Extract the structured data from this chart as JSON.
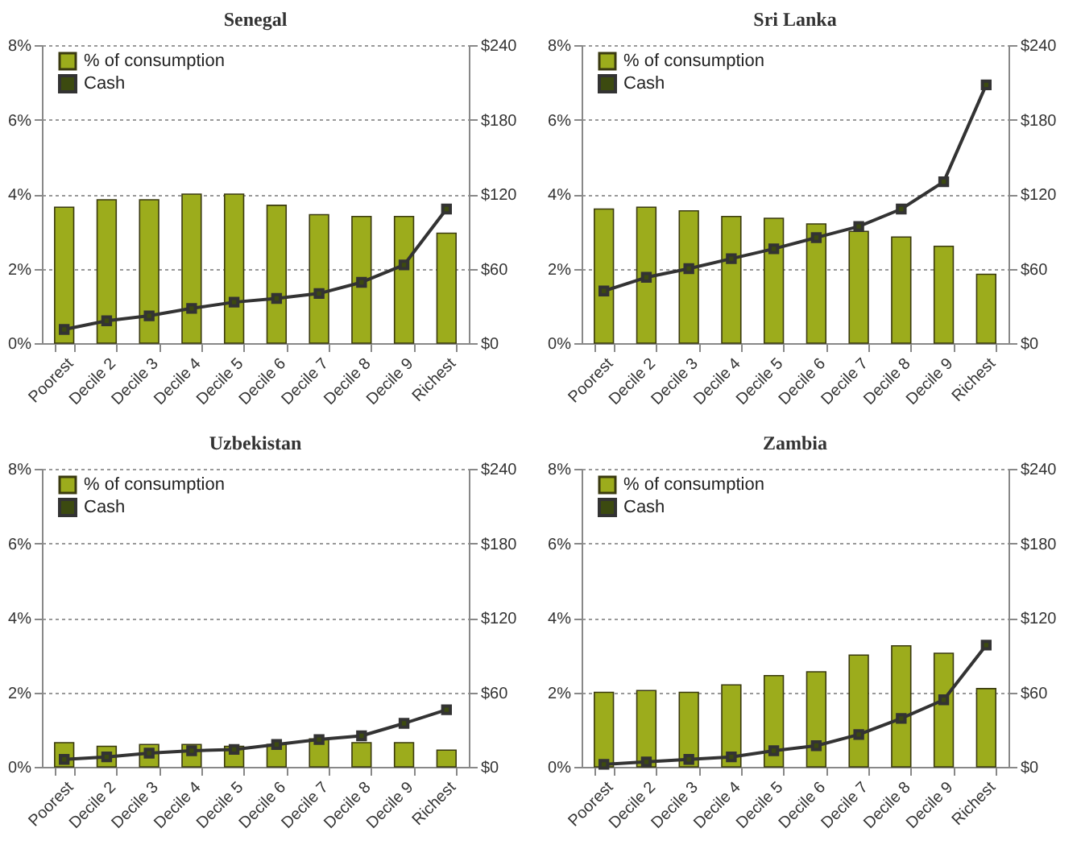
{
  "chart_data": [
    {
      "type": "bar",
      "title": "Senegal",
      "categories": [
        "Poorest",
        "Decile 2",
        "Decile 3",
        "Decile 4",
        "Decile 5",
        "Decile 6",
        "Decile 7",
        "Decile 8",
        "Decile 9",
        "Richest"
      ],
      "series": [
        {
          "name": "% of consumption",
          "color": "#9cac1c",
          "values": [
            3.65,
            3.85,
            3.85,
            4.0,
            4.0,
            3.7,
            3.45,
            3.4,
            3.4,
            2.95
          ]
        },
        {
          "name": "Cash",
          "type": "line",
          "axis": "y2",
          "color": "#333333",
          "values": [
            11,
            18,
            22,
            28,
            33,
            36,
            40,
            49,
            63,
            108
          ]
        }
      ],
      "ylim": [
        0,
        8
      ],
      "yticks": [
        {
          "value": 0,
          "label": "0%"
        },
        {
          "value": 2,
          "label": "2%"
        },
        {
          "value": 4,
          "label": "4%"
        },
        {
          "value": 6,
          "label": "6%"
        },
        {
          "value": 8,
          "label": "8%"
        }
      ],
      "y2lim": [
        0,
        240
      ],
      "y2ticks": [
        {
          "value": 0,
          "label": "$0"
        },
        {
          "value": 60,
          "label": "$60"
        },
        {
          "value": 120,
          "label": "$120"
        },
        {
          "value": 180,
          "label": "$180"
        },
        {
          "value": 240,
          "label": "$240"
        }
      ],
      "grid": "y",
      "legend": "top left",
      "marker": "square"
    },
    {
      "type": "bar",
      "title": "Sri Lanka",
      "categories": [
        "Poorest",
        "Decile 2",
        "Decile 3",
        "Decile 4",
        "Decile 5",
        "Decile 6",
        "Decile 7",
        "Decile 8",
        "Decile 9",
        "Richest"
      ],
      "series": [
        {
          "name": "% of consumption",
          "color": "#9cac1c",
          "values": [
            3.6,
            3.65,
            3.55,
            3.4,
            3.35,
            3.2,
            3.0,
            2.85,
            2.6,
            1.85
          ]
        },
        {
          "name": "Cash",
          "type": "line",
          "axis": "y2",
          "color": "#333333",
          "values": [
            42,
            53,
            60,
            68,
            76,
            85,
            94,
            108,
            130,
            208
          ]
        }
      ],
      "ylim": [
        0,
        8
      ],
      "yticks": [
        {
          "value": 0,
          "label": "0%"
        },
        {
          "value": 2,
          "label": "2%"
        },
        {
          "value": 4,
          "label": "4%"
        },
        {
          "value": 6,
          "label": "6%"
        },
        {
          "value": 8,
          "label": "8%"
        }
      ],
      "y2lim": [
        0,
        240
      ],
      "y2ticks": [
        {
          "value": 0,
          "label": "$0"
        },
        {
          "value": 60,
          "label": "$60"
        },
        {
          "value": 120,
          "label": "$120"
        },
        {
          "value": 180,
          "label": "$180"
        },
        {
          "value": 240,
          "label": "$240"
        }
      ],
      "grid": "y",
      "legend": "top left",
      "marker": "square"
    },
    {
      "type": "bar",
      "title": "Uzbekistan",
      "categories": [
        "Poorest",
        "Decile 2",
        "Decile 3",
        "Decile 4",
        "Decile 5",
        "Decile 6",
        "Decile 7",
        "Decile 8",
        "Decile 9",
        "Richest"
      ],
      "series": [
        {
          "name": "% of consumption",
          "color": "#9cac1c",
          "values": [
            0.65,
            0.55,
            0.6,
            0.6,
            0.55,
            0.6,
            0.75,
            0.65,
            0.65,
            0.45
          ]
        },
        {
          "name": "Cash",
          "type": "line",
          "axis": "y2",
          "color": "#333333",
          "values": [
            6,
            8,
            11,
            13,
            14,
            18,
            22,
            25,
            35,
            46
          ]
        }
      ],
      "ylim": [
        0,
        8
      ],
      "yticks": [
        {
          "value": 0,
          "label": "0%"
        },
        {
          "value": 2,
          "label": "2%"
        },
        {
          "value": 4,
          "label": "4%"
        },
        {
          "value": 6,
          "label": "6%"
        },
        {
          "value": 8,
          "label": "8%"
        }
      ],
      "y2lim": [
        0,
        240
      ],
      "y2ticks": [
        {
          "value": 0,
          "label": "$0"
        },
        {
          "value": 60,
          "label": "$60"
        },
        {
          "value": 120,
          "label": "$120"
        },
        {
          "value": 180,
          "label": "$180"
        },
        {
          "value": 240,
          "label": "$240"
        }
      ],
      "grid": "y",
      "legend": "top left",
      "marker": "square"
    },
    {
      "type": "bar",
      "title": "Zambia",
      "categories": [
        "Poorest",
        "Decile 2",
        "Decile 3",
        "Decile 4",
        "Decile 5",
        "Decile 6",
        "Decile 7",
        "Decile 8",
        "Decile 9",
        "Richest"
      ],
      "series": [
        {
          "name": "% of consumption",
          "color": "#9cac1c",
          "values": [
            2.0,
            2.05,
            2.0,
            2.2,
            2.45,
            2.55,
            3.0,
            3.25,
            3.05,
            2.1
          ]
        },
        {
          "name": "Cash",
          "type": "line",
          "axis": "y2",
          "color": "#333333",
          "values": [
            2,
            4,
            6,
            8,
            13,
            17,
            26,
            39,
            54,
            98
          ]
        }
      ],
      "ylim": [
        0,
        8
      ],
      "yticks": [
        {
          "value": 0,
          "label": "0%"
        },
        {
          "value": 2,
          "label": "2%"
        },
        {
          "value": 4,
          "label": "4%"
        },
        {
          "value": 6,
          "label": "6%"
        },
        {
          "value": 8,
          "label": "8%"
        }
      ],
      "y2lim": [
        0,
        240
      ],
      "y2ticks": [
        {
          "value": 0,
          "label": "$0"
        },
        {
          "value": 60,
          "label": "$60"
        },
        {
          "value": 120,
          "label": "$120"
        },
        {
          "value": 180,
          "label": "$180"
        },
        {
          "value": 240,
          "label": "$240"
        }
      ],
      "grid": "y",
      "legend": "top left",
      "marker": "square"
    }
  ]
}
